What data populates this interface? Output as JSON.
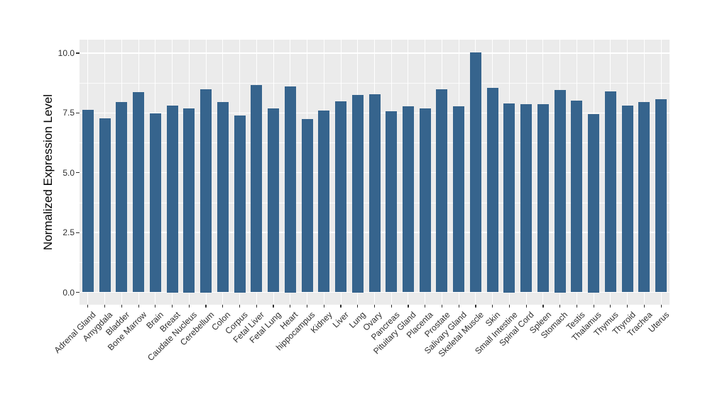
{
  "chart_data": {
    "type": "bar",
    "title": "",
    "xlabel": "",
    "ylabel": "Normalized Expression Level",
    "categories": [
      "Adrenal Gland",
      "Amygdala",
      "Bladder",
      "Bone Marrow",
      "Brain",
      "Breast",
      "Caudate Nucleus",
      "Cerebellum",
      "Colon",
      "Corpus",
      "Fetal Liver",
      "Fetal Lung",
      "Heart",
      "hippocampus",
      "Kidney",
      "Liver",
      "Lung",
      "Ovary",
      "Pancreas",
      "Pituitary Gland",
      "Placenta",
      "Prostate",
      "Salivary Gland",
      "Skeletal Muscle",
      "Skin",
      "Small Intestine",
      "Spinal Cord",
      "Spleen",
      "Stomach",
      "Testis",
      "Thalamus",
      "Thymus",
      "Thyroid",
      "Trachea",
      "Uterus"
    ],
    "values": [
      7.64,
      7.26,
      7.96,
      8.36,
      7.48,
      7.8,
      7.7,
      8.5,
      7.97,
      7.4,
      8.68,
      7.68,
      8.6,
      7.24,
      7.59,
      7.99,
      8.25,
      8.29,
      7.57,
      7.79,
      7.69,
      8.48,
      7.77,
      10.03,
      8.56,
      7.9,
      7.88,
      7.88,
      8.45,
      8.01,
      7.45,
      8.41,
      7.81,
      7.96,
      8.07
    ],
    "ylim": [
      0,
      10.56
    ],
    "yticks": [
      0,
      2.5,
      5,
      7.5,
      10
    ],
    "ytick_labels": [
      "0.0",
      "2.5",
      "5.0",
      "7.5",
      "10.0"
    ],
    "yticks_minor": [
      1.25,
      3.75,
      6.25,
      8.75
    ],
    "grid": true,
    "legend": false,
    "bar_color": "#36648D",
    "panel_color": "#EBEBEB",
    "grid_color": "#FFFFFF",
    "text_color": "#2E2E2E",
    "tick_color": "#333333"
  }
}
